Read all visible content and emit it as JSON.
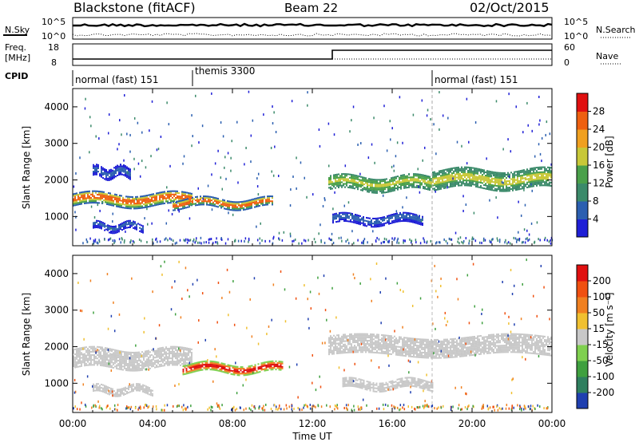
{
  "header": {
    "radar": "Blackstone (fitACF)",
    "beam": "Beam 22",
    "date": "02/Oct/2015"
  },
  "noise_panel": {
    "left_label": "N.Sky",
    "right_label": "N.Search",
    "left_ticks": [
      "10^5",
      "10^0"
    ],
    "right_ticks": [
      "10^5",
      "10^0"
    ]
  },
  "freq_panel": {
    "left_label_1": "Freq.",
    "left_label_2": "[MHz]",
    "right_label": "Nave",
    "left_ticks": [
      "18",
      "8"
    ],
    "right_ticks": [
      "60",
      "0"
    ]
  },
  "cpid": {
    "label": "CPID",
    "segments": [
      {
        "start_hour": 0,
        "text": "normal (fast) 151"
      },
      {
        "start_hour": 6,
        "text": "themis 3300"
      },
      {
        "start_hour": 18,
        "text": "normal (fast) 151"
      }
    ]
  },
  "x_axis": {
    "label": "Time UT",
    "ticks": [
      "00:00",
      "04:00",
      "08:00",
      "12:00",
      "16:00",
      "20:00",
      "00:00"
    ]
  },
  "chart_data": [
    {
      "type": "heatmap",
      "title": "",
      "xlabel": "Time UT",
      "ylabel": "Slant Range [km]",
      "xlim": [
        0,
        24
      ],
      "ylim": [
        200,
        4500
      ],
      "yticks": [
        "1000",
        "2000",
        "3000",
        "4000"
      ],
      "colorbar": {
        "label": "Power [dB]",
        "ticks": [
          "4",
          "8",
          "12",
          "16",
          "20",
          "24",
          "28"
        ],
        "range": [
          0,
          30
        ],
        "colors": [
          "#1f1fd6",
          "#2b5fb0",
          "#3b8a6a",
          "#4aa04a",
          "#c8c838",
          "#f0a020",
          "#ee6010",
          "#e01010"
        ]
      },
      "features": [
        {
          "t0": 0.0,
          "t1": 6.0,
          "range_center": 1450,
          "range_width": 350,
          "level": "strong"
        },
        {
          "t0": 1.0,
          "t1": 2.9,
          "range_center": 2200,
          "range_width": 300,
          "level": "weak"
        },
        {
          "t0": 1.0,
          "t1": 3.5,
          "range_center": 700,
          "range_width": 200,
          "level": "weak"
        },
        {
          "t0": 5.0,
          "t1": 10.0,
          "range_center": 1350,
          "range_width": 250,
          "level": "strong"
        },
        {
          "t0": 12.8,
          "t1": 18.0,
          "range_center": 1900,
          "range_width": 400,
          "level": "medium"
        },
        {
          "t0": 13.0,
          "t1": 17.5,
          "range_center": 900,
          "range_width": 250,
          "level": "weak"
        },
        {
          "t0": 18.0,
          "t1": 24.0,
          "range_center": 2000,
          "range_width": 500,
          "level": "medium"
        }
      ]
    },
    {
      "type": "heatmap",
      "title": "",
      "xlabel": "Time UT",
      "ylabel": "Slant Range [km]",
      "xlim": [
        0,
        24
      ],
      "ylim": [
        200,
        4500
      ],
      "yticks": [
        "1000",
        "2000",
        "3000",
        "4000"
      ],
      "colorbar": {
        "label": "Velocity [m s⁻¹]",
        "ticks": [
          "200",
          "100",
          "50",
          "15",
          "-15",
          "-50",
          "-100",
          "-200"
        ],
        "colors": [
          "#1f3fb0",
          "#2f7f5f",
          "#3fa03f",
          "#7fd04f",
          "#c8c8c8",
          "#f0c030",
          "#f08020",
          "#f05010",
          "#e01010"
        ]
      },
      "features": [
        {
          "t0": 0.0,
          "t1": 6.0,
          "range_center": 1650,
          "range_width": 500,
          "class": "ground"
        },
        {
          "t0": 5.5,
          "t1": 10.5,
          "range_center": 1400,
          "range_width": 250,
          "class": "negative"
        },
        {
          "t0": 12.8,
          "t1": 24.0,
          "range_center": 2000,
          "range_width": 500,
          "class": "ground"
        },
        {
          "t0": 13.5,
          "t1": 18.0,
          "range_center": 950,
          "range_width": 250,
          "class": "ground"
        },
        {
          "t0": 1.0,
          "t1": 4.0,
          "range_center": 800,
          "range_width": 200,
          "class": "ground"
        }
      ]
    }
  ]
}
